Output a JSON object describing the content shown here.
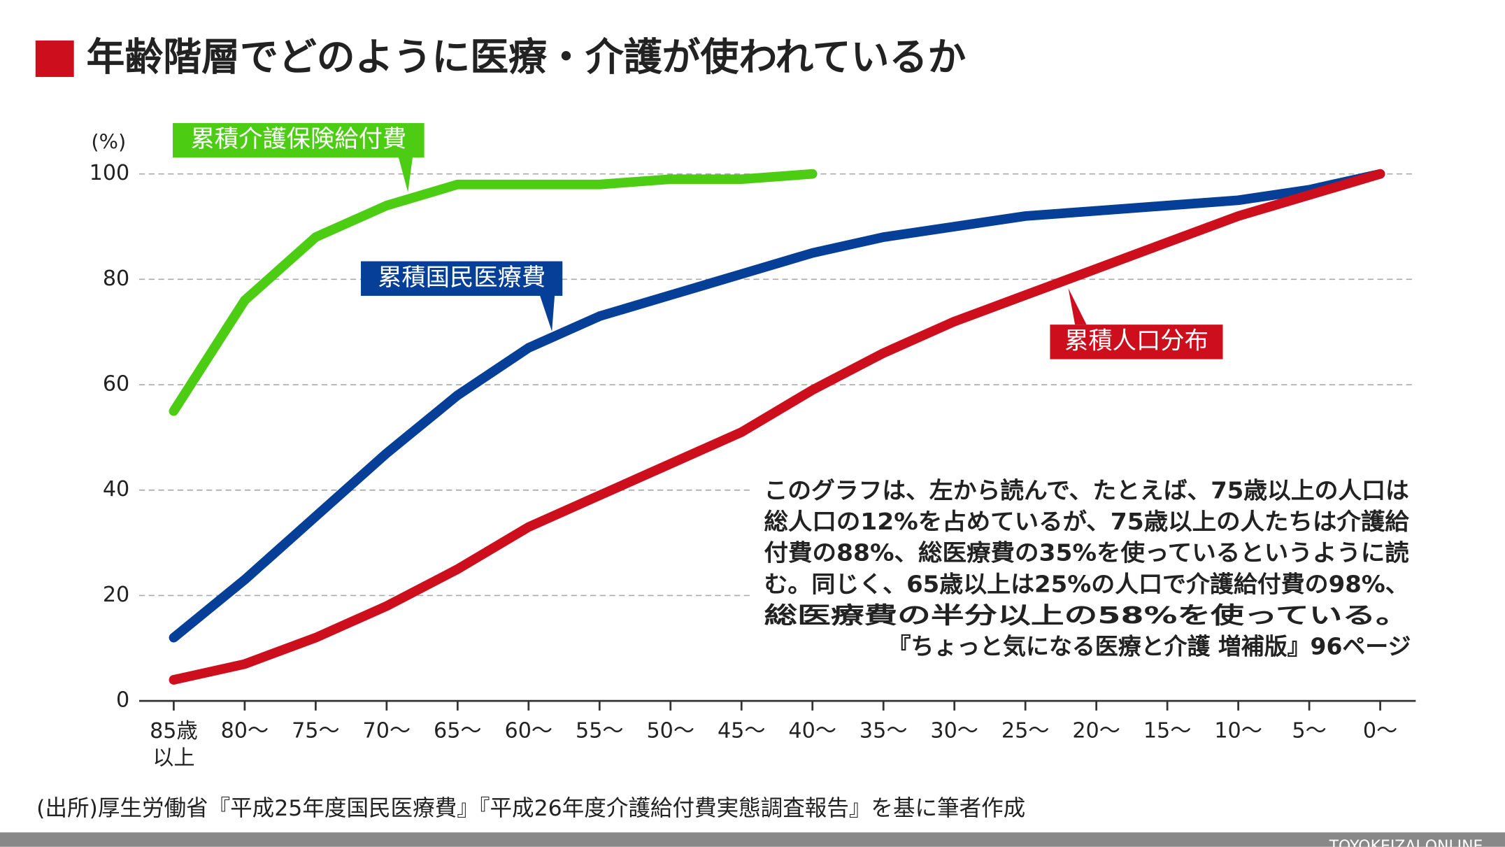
{
  "chart_data": {
    "type": "line",
    "title": "年齢階層でどのように医療・介護が使われているか",
    "y_unit": "(%)",
    "categories": [
      "85歳\n以上",
      "80〜",
      "75〜",
      "70〜",
      "65〜",
      "60〜",
      "55〜",
      "50〜",
      "45〜",
      "40〜",
      "35〜",
      "30〜",
      "25〜",
      "20〜",
      "15〜",
      "10〜",
      "5〜",
      "0〜"
    ],
    "series": [
      {
        "name": "累積介護保険給付費",
        "color": "#4ccd14",
        "values": [
          55,
          76,
          88,
          94,
          98,
          98,
          98,
          99,
          99,
          100,
          null,
          null,
          null,
          null,
          null,
          null,
          null,
          null
        ]
      },
      {
        "name": "累積国民医療費",
        "color": "#053f97",
        "values": [
          12,
          23,
          35,
          47,
          58,
          67,
          73,
          77,
          81,
          85,
          88,
          90,
          92,
          93,
          94,
          95,
          97,
          100
        ]
      },
      {
        "name": "累積人口分布",
        "color": "#cc0e1d",
        "values": [
          4,
          7,
          12,
          18,
          25,
          33,
          39,
          45,
          51,
          59,
          66,
          72,
          77,
          82,
          87,
          92,
          96,
          100
        ]
      }
    ],
    "ylim": [
      0,
      100
    ],
    "yticks": [
      0,
      20,
      40,
      60,
      80,
      100
    ],
    "grid": true,
    "annotation": [
      "このグラフは、左から読んで、たとえば、75歳以上の人口は",
      "総人口の12%を占めているが、75歳以上の人たちは介護給",
      "付費の88%、総医療費の35%を使っているというように読",
      "む。同じく、65歳以上は25%の人口で介護給付費の98%、",
      "総医療費の半分以上の58%を使っている。",
      "『ちょっと気になる医療と介護 増補版』96ページ"
    ],
    "source": "(出所)厚生労働省『平成25年度国民医療費』『平成26年度介護給付費実態調査報告』を基に筆者作成",
    "footer": "TOYOKEIZAI ONLINE"
  }
}
